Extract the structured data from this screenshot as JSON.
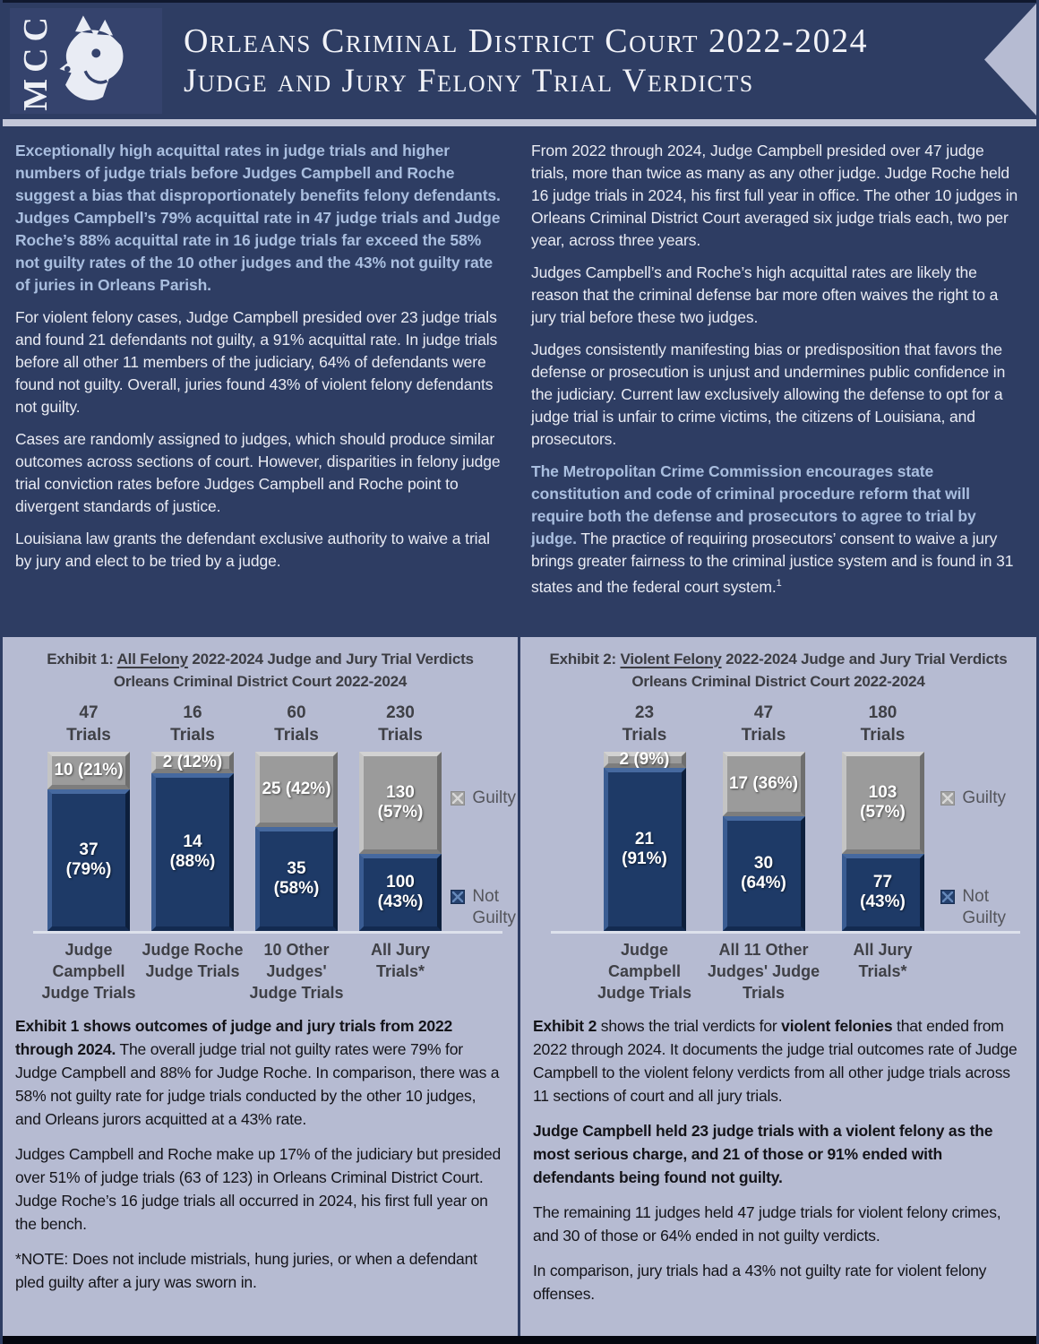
{
  "colors": {
    "page_background": "#b6bbd2",
    "banner_navy": "#2e3d63",
    "bar_not_guilty_navy": "#1e3a67",
    "bar_guilty_gray": "#9b9b9b",
    "intro_bold_text": "#a9bedf",
    "footer_bar": "#05070f"
  },
  "header": {
    "logo_text": "MCC",
    "title_line1": "Orleans Criminal District Court 2022-2024",
    "title_line2": "Judge and Jury Felony Trial Verdicts"
  },
  "intro": {
    "left": [
      "Exceptionally high acquittal rates in judge trials and higher numbers of judge trials before Judges Campbell and Roche suggest a bias that disproportionately benefits felony defendants. Judges Campbell’s 79% acquittal rate in 47 judge trials and Judge Roche’s 88% acquittal rate in 16 judge trials far exceed the 58% not guilty rates of the 10 other judges and the 43% not guilty rate of juries in Orleans Parish.",
      "For violent felony cases, Judge Campbell presided over 23 judge trials and found 21 defendants not guilty, a 91% acquittal rate. In judge trials before all other 11 members of the judiciary, 64% of defendants were found not guilty. Overall, juries found 43% of violent felony defendants not guilty.",
      "Cases are randomly assigned to judges, which should produce similar outcomes across sections of court. However, disparities in felony judge trial conviction rates before Judges Campbell and Roche point to divergent standards of justice.",
      "Louisiana law grants the defendant exclusive authority to waive a trial by jury and elect to be tried by a judge."
    ],
    "right": [
      "From 2022 through 2024, Judge Campbell presided over 47 judge trials, more than twice as many as any other judge. Judge Roche held 16 judge trials in 2024, his first full year in office. The other 10 judges in Orleans Criminal District Court averaged six judge trials each, two per year, across three years.",
      "Judges Campbell’s and Roche’s high acquittal rates are likely the reason that the criminal defense bar more often waives the right to a jury trial before these two judges.",
      "Judges consistently manifesting bias or predisposition that favors the defense or prosecution is unjust and undermines public confidence in the judiciary. Current law exclusively allowing the defense to opt for a judge trial is unfair to crime victims, the citizens of Louisiana, and prosecutors."
    ],
    "right_final": {
      "bold": "The Metropolitan Crime Commission encourages state constitution and code of criminal procedure reform that will require both the defense and prosecutors to agree to trial by judge.",
      "regular": " The practice of requiring prosecutors’ consent to waive a jury brings greater fairness to the criminal justice system and is found in 31 states and the federal court system.",
      "footnote_marker": "1"
    }
  },
  "exhibits": [
    {
      "title_prefix": "Exhibit 1: ",
      "title_underlined": "All Felony",
      "title_suffix": " 2022-2024 Judge and Jury Trial Verdicts",
      "title_line2": "Orleans Criminal District Court 2022-2024",
      "legend": {
        "guilty": "Guilty",
        "not_guilty": "Not\nGuilty"
      },
      "bars": [
        {
          "trials": "47\nTrials",
          "guilty_label": "10 (21%)",
          "guilty_pct": 21,
          "not_guilty_label": "37\n(79%)",
          "not_guilty_pct": 79,
          "x_label": "Judge\nCampbell\nJudge Trials"
        },
        {
          "trials": "16\nTrials",
          "guilty_label": "2 (12%)",
          "guilty_pct": 12,
          "not_guilty_label": "14\n(88%)",
          "not_guilty_pct": 88,
          "x_label": "Judge Roche\nJudge Trials"
        },
        {
          "trials": "60\nTrials",
          "guilty_label": "25 (42%)",
          "guilty_pct": 42,
          "not_guilty_label": "35\n(58%)",
          "not_guilty_pct": 58,
          "x_label": "10 Other\nJudges'\nJudge Trials"
        },
        {
          "trials": "230\nTrials",
          "guilty_label": "130\n(57%)",
          "guilty_pct": 57,
          "not_guilty_label": "100\n(43%)",
          "not_guilty_pct": 43,
          "x_label": "All Jury\nTrials*"
        }
      ]
    },
    {
      "title_prefix": "Exhibit 2: ",
      "title_underlined": "Violent Felony",
      "title_suffix": " 2022-2024 Judge and Jury Trial Verdicts",
      "title_line2": "Orleans Criminal District Court 2022-2024",
      "legend": {
        "guilty": "Guilty",
        "not_guilty": "Not\nGuilty"
      },
      "bars": [
        {
          "trials": "23\nTrials",
          "guilty_label": "2 (9%)",
          "guilty_pct": 9,
          "not_guilty_label": "21\n(91%)",
          "not_guilty_pct": 91,
          "x_label": "Judge\nCampbell\nJudge Trials"
        },
        {
          "trials": "47\nTrials",
          "guilty_label": "17 (36%)",
          "guilty_pct": 36,
          "not_guilty_label": "30\n(64%)",
          "not_guilty_pct": 64,
          "x_label": "All 11 Other\nJudges' Judge\nTrials"
        },
        {
          "trials": "180\nTrials",
          "guilty_label": "103\n(57%)",
          "guilty_pct": 57,
          "not_guilty_label": "77\n(43%)",
          "not_guilty_pct": 43,
          "x_label": "All Jury\nTrials*"
        }
      ]
    }
  ],
  "chart_data": [
    {
      "type": "bar",
      "stacked": true,
      "units": "percent of trials (labels show count and percent)",
      "title": "Exhibit 1: All Felony 2022-2024 Judge and Jury Trial Verdicts",
      "subtitle": "Orleans Criminal District Court 2022-2024",
      "categories": [
        "Judge Campbell Judge Trials",
        "Judge Roche Judge Trials",
        "10 Other Judges' Judge Trials",
        "All Jury Trials*"
      ],
      "total_trials": [
        47,
        16,
        60,
        230
      ],
      "series": [
        {
          "name": "Guilty",
          "counts": [
            10,
            2,
            25,
            130
          ],
          "percents": [
            21,
            12,
            42,
            57
          ]
        },
        {
          "name": "Not Guilty",
          "counts": [
            37,
            14,
            35,
            100
          ],
          "percents": [
            79,
            88,
            58,
            43
          ]
        }
      ],
      "ylim": [
        0,
        100
      ],
      "grid": false,
      "legend_position": "right"
    },
    {
      "type": "bar",
      "stacked": true,
      "units": "percent of trials (labels show count and percent)",
      "title": "Exhibit 2: Violent Felony 2022-2024 Judge and Jury Trial Verdicts",
      "subtitle": "Orleans Criminal District Court 2022-2024",
      "categories": [
        "Judge Campbell Judge Trials",
        "All 11 Other Judges' Judge Trials",
        "All Jury Trials*"
      ],
      "total_trials": [
        23,
        47,
        180
      ],
      "series": [
        {
          "name": "Guilty",
          "counts": [
            2,
            17,
            103
          ],
          "percents": [
            9,
            36,
            57
          ]
        },
        {
          "name": "Not Guilty",
          "counts": [
            21,
            30,
            77
          ],
          "percents": [
            91,
            64,
            43
          ]
        }
      ],
      "ylim": [
        0,
        100
      ],
      "grid": false,
      "legend_position": "right"
    }
  ],
  "below": {
    "left": {
      "p1_bold": "Exhibit 1 shows outcomes of judge and jury trials from 2022 through 2024.",
      "p1_regular": " The overall judge trial not guilty rates were 79% for Judge Campbell and 88% for Judge Roche. In comparison, there was a 58% not guilty rate for judge trials conducted by the other 10 judges, and Orleans jurors acquitted at a 43% rate.",
      "p2": "Judges Campbell and Roche make up 17% of the judiciary but presided over 51% of judge trials (63 of 123) in Orleans Criminal District Court. Judge Roche’s 16 judge trials all occurred in 2024, his first full year on the bench.",
      "note": "*NOTE: Does not include mistrials, hung juries, or when a defendant pled guilty after a jury was sworn in."
    },
    "right": {
      "p1_bold": "Exhibit 2",
      "p1_regular": " shows the trial verdicts for ",
      "p1_bold2": "violent felonies",
      "p1_regular2": " that ended from 2022 through 2024. It documents the judge trial outcomes rate of Judge Campbell to the violent felony verdicts from all other judge trials across 11 sections of court and all jury trials.",
      "p2_bold": "Judge Campbell held 23 judge trials with a violent felony as the most serious charge, and 21 of those or 91% ended with defendants being found not guilty.",
      "p3": "The remaining 11 judges held 47 judge trials for violent felony crimes, and 30 of those or 64% ended in not guilty verdicts.",
      "p4": "In comparison, jury trials had a 43% not guilty rate for violent felony offenses."
    }
  }
}
